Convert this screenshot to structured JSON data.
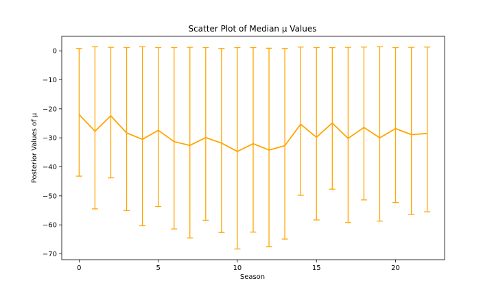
{
  "chart_data": {
    "type": "line",
    "title": "Scatter Plot of Median μ Values",
    "xlabel": "Season",
    "ylabel": "Posterior Values of μ",
    "xlim": [
      -1.1,
      23.1
    ],
    "ylim": [
      -72,
      5
    ],
    "xticks": [
      0,
      5,
      10,
      15,
      20
    ],
    "yticks": [
      0,
      -10,
      -20,
      -30,
      -40,
      -50,
      -60,
      -70
    ],
    "color": "#FFA500",
    "grid": false,
    "series": [
      {
        "x": [
          0,
          1,
          2,
          3,
          4,
          5,
          6,
          7,
          8,
          9,
          10,
          11,
          12,
          13,
          14,
          15,
          16,
          17,
          18,
          19,
          20,
          21,
          22
        ],
        "median": [
          -22.0,
          -27.7,
          -22.4,
          -28.3,
          -30.5,
          -27.4,
          -31.3,
          -32.6,
          -29.9,
          -31.8,
          -34.7,
          -32.0,
          -34.2,
          -32.7,
          -25.3,
          -29.8,
          -24.9,
          -30.2,
          -26.4,
          -30.0,
          -26.8,
          -28.9,
          -28.5
        ],
        "lower": [
          -43.2,
          -54.5,
          -43.8,
          -55.1,
          -60.3,
          -53.7,
          -61.4,
          -64.5,
          -58.4,
          -62.6,
          -68.3,
          -62.5,
          -67.5,
          -64.9,
          -49.8,
          -58.3,
          -47.7,
          -59.2,
          -51.4,
          -58.7,
          -52.3,
          -56.4,
          -55.5
        ],
        "upper": [
          0.8,
          1.4,
          1.2,
          1.1,
          1.4,
          1.1,
          1.1,
          1.2,
          1.1,
          0.8,
          1.1,
          1.1,
          0.9,
          0.8,
          1.3,
          1.1,
          1.1,
          1.2,
          1.3,
          1.4,
          1.1,
          1.2,
          1.3
        ]
      }
    ]
  }
}
